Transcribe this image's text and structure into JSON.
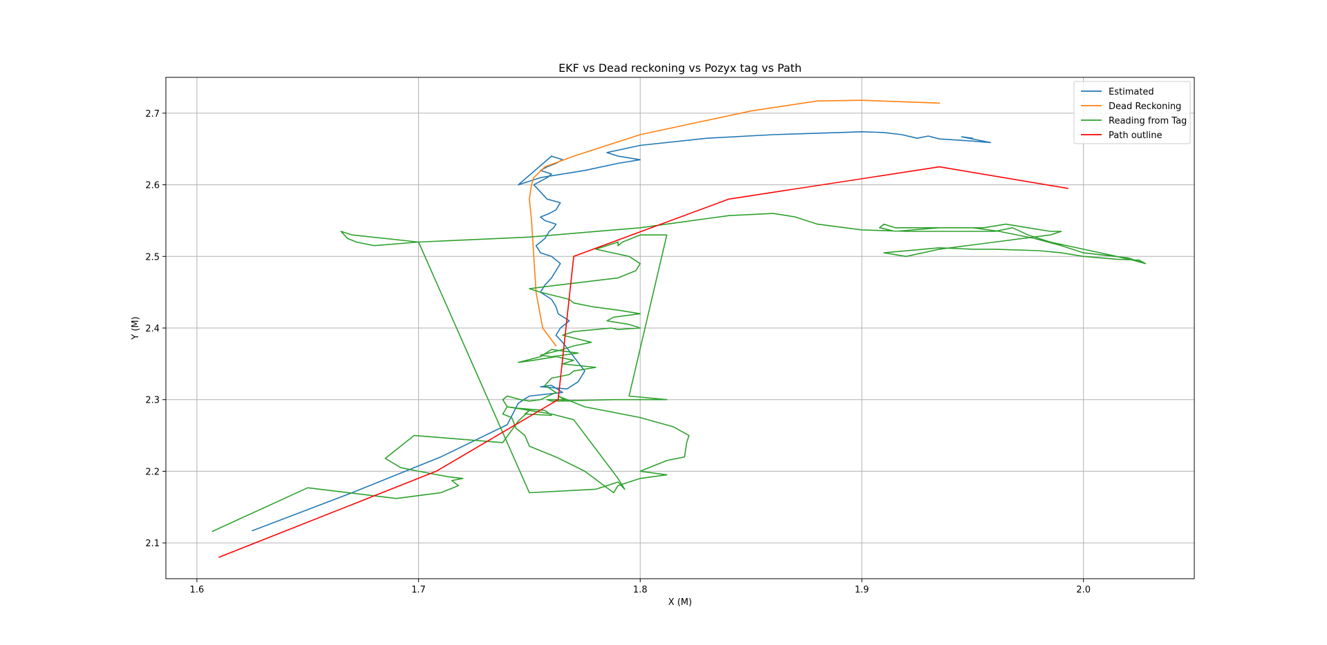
{
  "chart_data": {
    "type": "line",
    "title": "EKF vs Dead reckoning vs Pozyx tag vs Path",
    "xlabel": "X (M)",
    "ylabel": "Y (M)",
    "xlim": [
      1.586,
      2.05
    ],
    "ylim": [
      2.05,
      2.75
    ],
    "xticks": [
      1.6,
      1.7,
      1.8,
      1.9,
      2.0
    ],
    "xtick_labels": [
      "1.6",
      "1.7",
      "1.8",
      "1.9",
      "2.0"
    ],
    "yticks": [
      2.1,
      2.2,
      2.3,
      2.4,
      2.5,
      2.6,
      2.7
    ],
    "ytick_labels": [
      "2.1",
      "2.2",
      "2.3",
      "2.4",
      "2.5",
      "2.6",
      "2.7"
    ],
    "grid": true,
    "legend_position": "top-right",
    "series": [
      {
        "name": "Estimated",
        "color": "#1f77b4",
        "x": [
          1.625,
          1.67,
          1.71,
          1.74,
          1.745,
          1.75,
          1.765,
          1.76,
          1.755,
          1.767,
          1.772,
          1.775,
          1.77,
          1.765,
          1.762,
          1.764,
          1.768,
          1.763,
          1.762,
          1.76,
          1.755,
          1.757,
          1.76,
          1.762,
          1.764,
          1.76,
          1.755,
          1.753,
          1.757,
          1.759,
          1.761,
          1.762,
          1.757,
          1.755,
          1.759,
          1.762,
          1.763,
          1.764,
          1.758,
          1.755,
          1.752,
          1.755,
          1.758,
          1.76,
          1.755,
          1.758,
          1.762,
          1.765,
          1.76,
          1.745,
          1.755,
          1.775,
          1.79,
          1.8,
          1.79,
          1.785,
          1.8,
          1.83,
          1.86,
          1.88,
          1.9,
          1.91,
          1.918,
          1.925,
          1.93,
          1.935,
          1.94,
          1.95,
          1.958,
          1.945,
          1.95
        ],
        "y": [
          2.117,
          2.17,
          2.22,
          2.265,
          2.295,
          2.305,
          2.31,
          2.32,
          2.318,
          2.315,
          2.325,
          2.34,
          2.36,
          2.38,
          2.39,
          2.4,
          2.41,
          2.42,
          2.43,
          2.44,
          2.45,
          2.46,
          2.47,
          2.48,
          2.49,
          2.5,
          2.505,
          2.515,
          2.525,
          2.535,
          2.54,
          2.545,
          2.55,
          2.555,
          2.56,
          2.565,
          2.57,
          2.575,
          2.58,
          2.59,
          2.6,
          2.605,
          2.61,
          2.615,
          2.62,
          2.625,
          2.63,
          2.635,
          2.64,
          2.6,
          2.61,
          2.62,
          2.63,
          2.635,
          2.64,
          2.645,
          2.655,
          2.665,
          2.67,
          2.672,
          2.674,
          2.673,
          2.67,
          2.665,
          2.668,
          2.664,
          2.663,
          2.661,
          2.659,
          2.667,
          2.665
        ]
      },
      {
        "name": "Dead Reckoning",
        "color": "#ff7f0e",
        "x": [
          1.762,
          1.756,
          1.753,
          1.752,
          1.751,
          1.75,
          1.751,
          1.752,
          1.757,
          1.77,
          1.8,
          1.85,
          1.88,
          1.9,
          1.935
        ],
        "y": [
          2.375,
          2.4,
          2.45,
          2.5,
          2.55,
          2.58,
          2.6,
          2.61,
          2.625,
          2.64,
          2.67,
          2.703,
          2.717,
          2.718,
          2.714
        ]
      },
      {
        "name": "Reading from Tag",
        "color": "#2ca02c",
        "x": [
          1.607,
          1.65,
          1.69,
          1.71,
          1.718,
          1.715,
          1.72,
          1.714,
          1.7,
          1.692,
          1.685,
          1.698,
          1.738,
          1.745,
          1.75,
          1.748,
          1.76,
          1.757,
          1.745,
          1.74,
          1.738,
          1.74,
          1.746,
          1.75,
          1.755,
          1.762,
          1.757,
          1.76,
          1.768,
          1.77,
          1.78,
          1.765,
          1.77,
          1.762,
          1.758,
          1.75,
          1.745,
          1.755,
          1.76,
          1.772,
          1.76,
          1.755,
          1.765,
          1.77,
          1.778,
          1.765,
          1.77,
          1.787,
          1.79,
          1.8,
          1.795,
          1.785,
          1.788,
          1.8,
          1.79,
          1.778,
          1.77,
          1.768,
          1.755,
          1.75,
          1.763,
          1.79,
          1.798,
          1.8,
          1.795,
          1.78,
          1.79,
          1.79,
          1.792,
          1.8,
          1.812,
          1.795,
          1.812,
          1.788,
          1.788,
          1.76,
          1.758,
          1.76,
          1.766,
          1.763,
          1.775,
          1.8,
          1.815,
          1.822,
          1.821,
          1.82,
          1.812,
          1.8,
          1.812,
          1.8,
          1.79,
          1.788,
          1.775,
          1.762,
          1.75,
          1.748,
          1.744,
          1.742,
          1.738,
          1.74,
          1.75,
          1.76,
          1.765,
          1.77,
          1.79,
          1.793,
          1.79,
          1.785,
          1.78,
          1.75,
          1.7,
          1.67,
          1.665,
          1.668,
          1.672,
          1.68,
          1.7,
          1.75,
          1.8,
          1.84,
          1.86,
          1.87,
          1.88,
          1.9,
          1.92,
          1.94,
          1.96,
          1.968,
          1.975,
          1.985,
          2.0,
          2.015,
          2.022,
          2.028,
          2.025,
          2.015,
          2.0,
          1.99,
          1.98,
          1.96,
          1.95,
          1.935,
          1.91,
          1.92,
          1.935,
          1.96,
          1.985,
          1.99,
          1.985,
          1.975,
          1.965,
          1.955,
          1.935,
          1.915,
          1.908,
          1.91,
          1.915,
          1.93,
          1.95,
          1.962,
          1.978,
          1.99,
          2.0,
          2.02,
          2.028
        ],
        "y": [
          2.116,
          2.177,
          2.162,
          2.17,
          2.18,
          2.187,
          2.19,
          2.192,
          2.2,
          2.205,
          2.218,
          2.25,
          2.24,
          2.27,
          2.285,
          2.28,
          2.278,
          2.285,
          2.288,
          2.29,
          2.3,
          2.305,
          2.3,
          2.298,
          2.3,
          2.31,
          2.32,
          2.33,
          2.335,
          2.34,
          2.345,
          2.35,
          2.355,
          2.36,
          2.358,
          2.354,
          2.352,
          2.36,
          2.37,
          2.365,
          2.36,
          2.362,
          2.37,
          2.375,
          2.38,
          2.39,
          2.395,
          2.4,
          2.398,
          2.4,
          2.405,
          2.41,
          2.415,
          2.42,
          2.425,
          2.43,
          2.435,
          2.44,
          2.45,
          2.455,
          2.46,
          2.47,
          2.48,
          2.49,
          2.5,
          2.51,
          2.52,
          2.515,
          2.52,
          2.53,
          2.53,
          2.305,
          2.3,
          2.3,
          2.3,
          2.298,
          2.3,
          2.3,
          2.3,
          2.305,
          2.29,
          2.275,
          2.262,
          2.25,
          2.24,
          2.22,
          2.215,
          2.2,
          2.195,
          2.19,
          2.18,
          2.17,
          2.2,
          2.22,
          2.235,
          2.25,
          2.26,
          2.275,
          2.28,
          2.29,
          2.285,
          2.28,
          2.276,
          2.272,
          2.19,
          2.175,
          2.185,
          2.18,
          2.175,
          2.17,
          2.52,
          2.53,
          2.535,
          2.525,
          2.52,
          2.515,
          2.52,
          2.527,
          2.54,
          2.557,
          2.56,
          2.555,
          2.545,
          2.537,
          2.535,
          2.535,
          2.535,
          2.54,
          2.53,
          2.52,
          2.51,
          2.5,
          2.495,
          2.49,
          2.495,
          2.496,
          2.5,
          2.505,
          2.508,
          2.51,
          2.51,
          2.512,
          2.505,
          2.5,
          2.51,
          2.52,
          2.53,
          2.535,
          2.535,
          2.54,
          2.545,
          2.54,
          2.54,
          2.535,
          2.54,
          2.545,
          2.54,
          2.54,
          2.54,
          2.535,
          2.525,
          2.515,
          2.505,
          2.498,
          2.49
        ]
      },
      {
        "name": "Path outline",
        "color": "#ff0000",
        "x": [
          1.61,
          1.708,
          1.763,
          1.77,
          1.84,
          1.935,
          1.993
        ],
        "y": [
          2.08,
          2.2,
          2.3,
          2.5,
          2.58,
          2.625,
          2.595
        ]
      }
    ]
  }
}
